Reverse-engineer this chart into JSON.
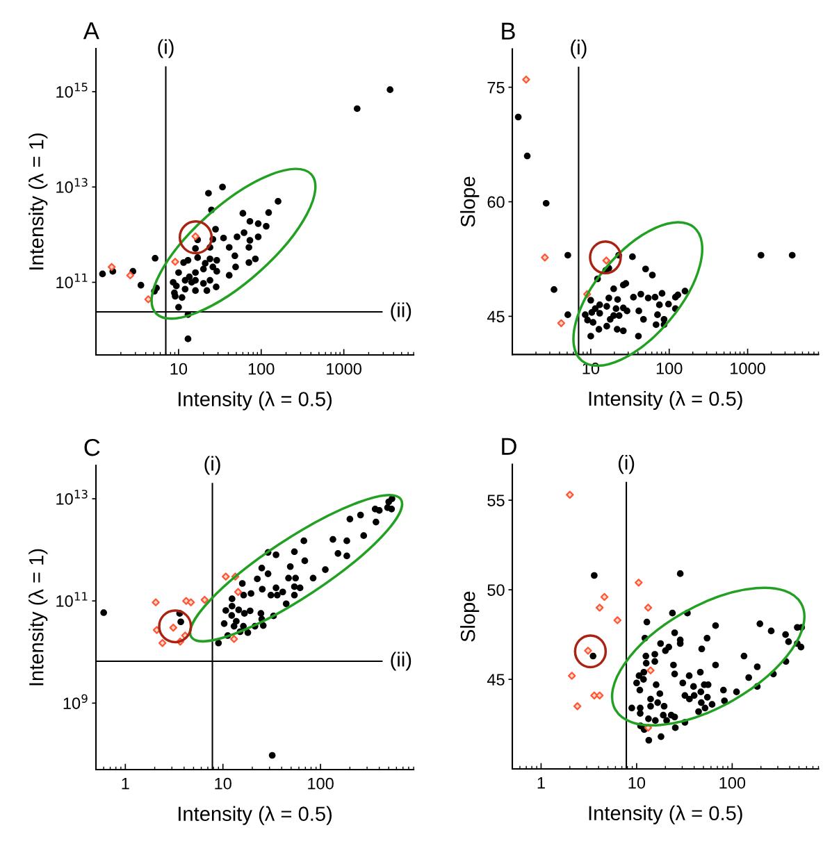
{
  "chart_data": [
    {
      "type": "scatter",
      "title": "A",
      "xlabel": "Intensity (λ = 0.5)",
      "ylabel": "Intensity (λ = 1)",
      "log": "xy",
      "xlim": [
        1,
        7000
      ],
      "ylim": [
        3000000000.0,
        8000000000000000.0
      ],
      "xticks": [
        10,
        100,
        1000
      ],
      "yticks": [
        {
          "value": 100000000000.0,
          "label": "10$^{11}$"
        },
        {
          "value": 10000000000000.0,
          "label": "10$^{13}$"
        },
        {
          "value": 1000000000000000.0,
          "label": "10$^{15}$"
        }
      ],
      "ref_lines": [
        {
          "axis": "x",
          "value": 7,
          "label": "(i)"
        },
        {
          "axis": "y",
          "value": 24000000000.0,
          "label": "(ii)"
        }
      ],
      "series": [
        {
          "color": "#000000",
          "marker": "circle",
          "x": [
            3630,
            1450,
            34,
            23,
            160,
            25,
            60,
            123,
            73,
            92,
            115,
            28,
            62,
            35,
            51,
            17,
            26,
            73,
            92,
            71,
            41,
            16,
            24,
            48,
            17,
            5.2,
            13,
            11.5,
            24,
            29,
            21,
            71,
            85,
            26,
            49,
            20,
            29,
            2.8,
            1.6,
            1.2,
            41,
            10,
            16,
            13.5,
            12,
            16,
            24,
            8.6,
            20,
            3.5,
            9.4,
            5.4,
            12,
            22,
            16,
            8.9,
            5.1,
            11,
            10,
            13,
            13,
            28.5,
            9.1,
            14.4
          ],
          "values": [
            1100000000000000.0,
            440000000000000.0,
            10000000000000.0,
            7400000000000.0,
            5000000000000.0,
            3300000000000.0,
            2800000000000.0,
            2900000000000.0,
            1900000000000.0,
            1700000000000.0,
            1500000000000.0,
            1300000000000.0,
            1100000000000.0,
            850000000000.0,
            900000000000.0,
            780000000000.0,
            800000000000.0,
            760000000000.0,
            900000000000.0,
            540000000000.0,
            540000000000.0,
            510000000000.0,
            540000000000.0,
            360000000000.0,
            330000000000.0,
            320000000000.0,
            290000000000.0,
            260000000000.0,
            310000000000.0,
            290000000000.0,
            250000000000.0,
            260000000000.0,
            310000000000.0,
            210000000000.0,
            210000000000.0,
            190000000000.0,
            170000000000.0,
            170000000000.0,
            170000000000.0,
            150000000000.0,
            140000000000.0,
            160000000000.0,
            160000000000.0,
            130000000000.0,
            110000000000.0,
            110000000000.0,
            110000000000.0,
            100000000000.0,
            95000000000.0,
            87000000000.0,
            84000000000.0,
            76000000000.0,
            72000000000.0,
            67000000000.0,
            67000000000.0,
            60000000000.0,
            65000000000.0,
            48000000000.0,
            30000000000.0,
            21000000000.0,
            6500000000.0,
            80000000000.0,
            51000000000.0,
            100000000000.0
          ]
        },
        {
          "color": "#ff5533",
          "marker": "diamond",
          "x": [
            1.55,
            2.6,
            4.3,
            9.1,
            16
          ],
          "values": [
            210000000000.0,
            140000000000.0,
            44000000000.0,
            270000000000.0,
            920000000000.0
          ]
        }
      ]
    },
    {
      "type": "scatter",
      "title": "B",
      "xlabel": "Intensity (λ = 0.5)",
      "ylabel": "Slope",
      "log": "x",
      "xlim": [
        1,
        8000
      ],
      "ylim": [
        40,
        80
      ],
      "xticks": [
        10,
        100,
        1000
      ],
      "yticks": [
        45,
        60,
        75
      ],
      "ref_lines": [
        {
          "axis": "x",
          "value": 7,
          "label": "(i)"
        }
      ],
      "series": [
        {
          "color": "#000000",
          "marker": "circle",
          "x": [
            1.19,
            1.55,
            2.7,
            5.1,
            3.4,
            5.1,
            1480,
            3700,
            22.7,
            34,
            17,
            15.5,
            50,
            61,
            12.2,
            28,
            26,
            19.6,
            10,
            17,
            22,
            35,
            43.5,
            54,
            66,
            81,
            120,
            159,
            129,
            98,
            75,
            13,
            11.4,
            16,
            21,
            26,
            29,
            41,
            8.5,
            10.3,
            13,
            19.6,
            23,
            47,
            71,
            86,
            120,
            9.1,
            10.7,
            16,
            12.7,
            21.7,
            26,
            68,
            86,
            10,
            40.5,
            17.7
          ],
          "values": [
            71.1,
            66.0,
            59.8,
            53.0,
            48.5,
            45.2,
            53.0,
            53.0,
            53.0,
            52.8,
            51.3,
            51.0,
            51.2,
            50.4,
            49.9,
            49.3,
            49.1,
            48.6,
            47.1,
            47.4,
            47.2,
            47.5,
            47.9,
            47.4,
            47.5,
            48.0,
            47.5,
            48.3,
            47.8,
            46.6,
            46.5,
            46.5,
            46.0,
            46.3,
            46.0,
            46.1,
            45.7,
            45.7,
            45.2,
            45.5,
            45.4,
            45.1,
            45.1,
            44.6,
            45.2,
            44.6,
            46.0,
            44.5,
            44.2,
            43.7,
            43.3,
            43.3,
            43.1,
            43.9,
            43.9,
            42.4,
            42.4,
            44.6
          ]
        },
        {
          "color": "#ff5533",
          "marker": "diamond",
          "x": [
            1.5,
            2.6,
            9.0,
            4.2,
            15.8
          ],
          "values": [
            76.0,
            52.7,
            47.9,
            44.1,
            52.3
          ]
        }
      ]
    },
    {
      "type": "scatter",
      "title": "C",
      "xlabel": "Intensity (λ = 0.5)",
      "ylabel": "Intensity (λ = 1)",
      "log": "xy",
      "xlim": [
        0.5,
        900
      ],
      "ylim": [
        50000000.0,
        45000000000000.0
      ],
      "xticks": [
        1,
        10,
        100
      ],
      "yticks": [
        {
          "value": 1000000000.0,
          "label": "10$^{9}$"
        },
        {
          "value": 100000000000.0,
          "label": "10$^{11}$"
        },
        {
          "value": 10000000000000.0,
          "label": "10$^{13}$"
        }
      ],
      "ref_lines": [
        {
          "axis": "x",
          "value": 7.8,
          "label": "(i)"
        },
        {
          "axis": "y",
          "value": 6600000000.0,
          "label": "(ii)"
        }
      ],
      "series": [
        {
          "color": "#000000",
          "marker": "circle",
          "x": [
            0.6,
            3.6,
            3.7,
            32,
            9.0,
            11.2,
            10.3,
            10.7,
            12.4,
            12.4,
            15.8,
            16.3,
            19.4,
            14.5,
            16.6,
            19,
            13.7,
            16.2,
            15,
            18,
            21.3,
            25,
            25.9,
            24.5,
            33,
            22.5,
            25.3,
            25,
            29,
            29,
            35,
            31,
            35,
            36,
            41,
            44.5,
            47,
            49,
            54,
            54,
            55.5,
            54,
            61.7,
            69,
            67.5,
            84,
            112,
            134,
            151,
            186,
            186,
            277,
            200,
            257,
            370,
            363,
            400,
            486,
            540,
            500,
            535,
            12.3,
            13
          ],
          "values": [
            59000000000.0,
            57000000000.0,
            39000000000.0,
            95000000.0,
            15000000000.0,
            21000000000.0,
            36000000000.0,
            65000000000.0,
            79000000000.0,
            110000000000.0,
            220000000000.0,
            130000000000.0,
            140000000000.0,
            67000000000.0,
            57000000000.0,
            64000000000.0,
            40000000000.0,
            32000000000.0,
            25000000000.0,
            24000000000.0,
            32000000000.0,
            44000000000.0,
            33000000000.0,
            57000000000.0,
            51000000000.0,
            270000000000.0,
            170000000000.0,
            440000000000.0,
            340000000000.0,
            890000000000.0,
            800000000000.0,
            130000000000.0,
            180000000000.0,
            130000000000.0,
            150000000000.0,
            88000000000.0,
            280000000000.0,
            470000000000.0,
            920000000000.0,
            190000000000.0,
            280000000000.0,
            130000000000.0,
            180000000000.0,
            610000000000.0,
            1500000000000.0,
            280000000000.0,
            410000000000.0,
            1600000000000.0,
            850000000000.0,
            1500000000000.0,
            760000000000.0,
            1900000000000.0,
            4000000000000.0,
            4800000000000.0,
            3500000000000.0,
            6300000000000.0,
            5900000000000.0,
            6700000000000.0,
            10000000000000.0,
            8700000000000.0,
            6300000000000.0,
            52000000000.0,
            32000000000.0
          ]
        },
        {
          "color": "#ff5533",
          "marker": "diamond",
          "x": [
            2.05,
            4.2,
            4.7,
            6.5,
            10.7,
            13.4,
            14.3,
            13,
            2.1,
            3.1,
            4.1,
            3.65,
            2.4
          ],
          "values": [
            94000000000.0,
            100000000000.0,
            94000000000.0,
            105000000000.0,
            300000000000.0,
            300000000000.0,
            150000000000.0,
            18000000000.0,
            27000000000.0,
            30000000000.0,
            21000000000.0,
            16000000000.0,
            15000000000.0
          ]
        }
      ]
    },
    {
      "type": "scatter",
      "title": "D",
      "xlabel": "Intensity (λ = 0.5)",
      "ylabel": "Slope",
      "log": "x",
      "xlim": [
        0.5,
        800
      ],
      "ylim": [
        40,
        57
      ],
      "xticks": [
        1,
        10,
        100
      ],
      "yticks": [
        45,
        50,
        55
      ],
      "ref_lines": [
        {
          "axis": "x",
          "value": 7.8,
          "label": "(i)"
        }
      ],
      "series": [
        {
          "color": "#000000",
          "marker": "circle",
          "x": [
            3.6,
            28.6,
            3.5,
            23.7,
            34,
            12.8,
            67,
            195,
            256,
            362,
            389,
            480,
            533,
            480,
            525,
            133,
            365,
            270,
            183,
            149,
            183,
            12.2,
            17.8,
            21.7,
            25,
            28.6,
            28.6,
            54.6,
            48,
            20,
            12.5,
            15.5,
            15.5,
            12.6,
            24.3,
            67,
            46.4,
            25,
            11.9,
            10.6,
            11.8,
            10,
            10.8,
            16,
            35.5,
            30.4,
            39.4,
            51,
            56,
            81,
            111,
            32,
            40,
            47,
            55,
            83,
            17.5,
            14,
            16.6,
            19.4,
            14,
            8.9,
            10.9,
            10.9,
            35.7,
            47.5,
            61.6,
            52,
            44.5,
            13.3,
            15.7,
            19,
            23,
            25,
            20.6,
            32,
            25.4,
            11,
            12,
            18,
            13.4
          ],
          "values": [
            50.8,
            50.9,
            46.3,
            48.7,
            48.7,
            48.2,
            48.0,
            48.1,
            47.7,
            47.5,
            47.1,
            47.9,
            47.9,
            47.0,
            46.8,
            46.3,
            46.0,
            45.3,
            45.7,
            45.1,
            44.6,
            47.3,
            47.0,
            46.8,
            47.6,
            47.2,
            47.0,
            47.3,
            46.7,
            46.6,
            46.3,
            46.4,
            46.0,
            45.9,
            45.8,
            45.8,
            45.4,
            45.3,
            45.4,
            45.2,
            45.0,
            44.8,
            44.4,
            44.7,
            45.2,
            44.8,
            44.6,
            44.7,
            44.7,
            44.4,
            44.3,
            44.1,
            44.1,
            44.3,
            44.0,
            43.8,
            44.2,
            43.9,
            43.7,
            43.5,
            43.5,
            43.4,
            43.4,
            43.1,
            43.9,
            43.7,
            43.6,
            43.4,
            43.2,
            42.8,
            42.7,
            43.0,
            43.0,
            42.9,
            42.7,
            42.6,
            42.3,
            42.4,
            42.2,
            41.8,
            41.6
          ]
        },
        {
          "color": "#ff5533",
          "marker": "diamond",
          "x": [
            2.0,
            10.5,
            4.6,
            4.1,
            6.3,
            13.2,
            3.1,
            14,
            2.1,
            3.6,
            4.1,
            2.4,
            13.2
          ],
          "values": [
            55.3,
            50.4,
            49.6,
            49.0,
            48.3,
            49.0,
            46.6,
            45.5,
            45.2,
            44.1,
            44.1,
            43.5,
            42.3
          ]
        }
      ]
    }
  ]
}
